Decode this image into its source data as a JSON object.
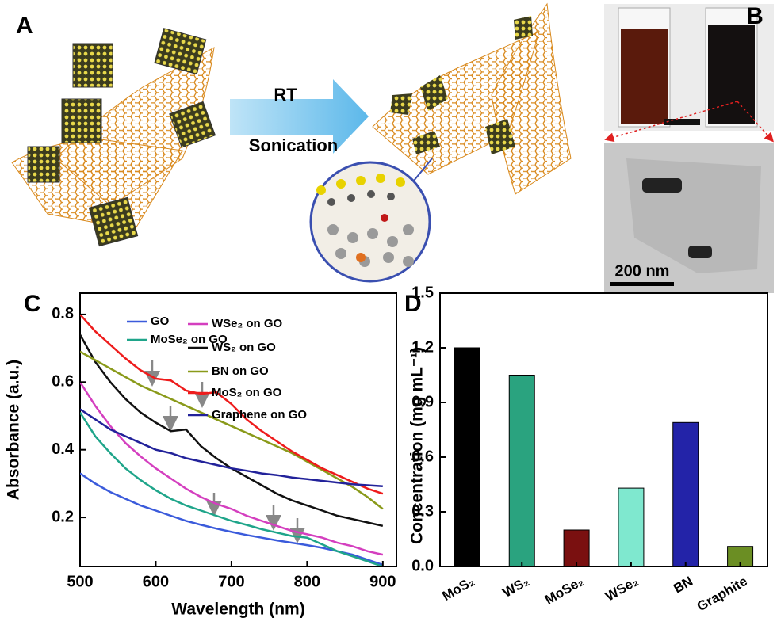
{
  "panels": {
    "a": {
      "label": "A",
      "arrow_top": "RT",
      "arrow_bottom": "Sonication"
    },
    "b": {
      "label": "B",
      "scale_bar": "200 nm"
    }
  },
  "chart_data": [
    {
      "type": "line",
      "panel_label": "C",
      "x_label": "Wavelength (nm)",
      "y_label": "Absorbance (a.u.)",
      "x": [
        500,
        520,
        540,
        560,
        580,
        600,
        620,
        640,
        660,
        680,
        700,
        720,
        740,
        760,
        780,
        800,
        820,
        840,
        860,
        880,
        900
      ],
      "xlim": [
        500,
        918
      ],
      "xticks": [
        500,
        600,
        700,
        800,
        900
      ],
      "ylim": [
        0.055,
        0.863
      ],
      "yticks": [
        0.2,
        0.4,
        0.6,
        0.8
      ],
      "series": [
        {
          "name": "GO",
          "color": "#3b5bdb",
          "values": [
            0.33,
            0.3,
            0.275,
            0.255,
            0.235,
            0.22,
            0.205,
            0.19,
            0.178,
            0.167,
            0.157,
            0.148,
            0.14,
            0.132,
            0.125,
            0.118,
            0.11,
            0.1,
            0.09,
            0.075,
            0.06
          ]
        },
        {
          "name": "MoSe₂ on GO",
          "color": "#1fa58a",
          "values": [
            0.51,
            0.44,
            0.39,
            0.345,
            0.31,
            0.28,
            0.255,
            0.235,
            0.22,
            0.205,
            0.19,
            0.178,
            0.165,
            0.155,
            0.145,
            0.14,
            0.12,
            0.1,
            0.085,
            0.07,
            0.055
          ]
        },
        {
          "name": "WSe₂ on GO",
          "color": "#d43fbf",
          "values": [
            0.6,
            0.53,
            0.47,
            0.42,
            0.38,
            0.345,
            0.315,
            0.285,
            0.26,
            0.24,
            0.225,
            0.205,
            0.19,
            0.175,
            0.16,
            0.15,
            0.14,
            0.125,
            0.115,
            0.1,
            0.09
          ]
        },
        {
          "name": "WS₂ on GO",
          "color": "#111111",
          "values": [
            0.74,
            0.66,
            0.6,
            0.55,
            0.51,
            0.48,
            0.455,
            0.46,
            0.41,
            0.375,
            0.345,
            0.32,
            0.295,
            0.27,
            0.25,
            0.235,
            0.22,
            0.205,
            0.195,
            0.185,
            0.175
          ]
        },
        {
          "name": "BN on GO",
          "color": "#8a9a1a",
          "values": [
            0.69,
            0.665,
            0.64,
            0.615,
            0.59,
            0.57,
            0.55,
            0.53,
            0.51,
            0.49,
            0.47,
            0.45,
            0.43,
            0.41,
            0.39,
            0.365,
            0.34,
            0.315,
            0.29,
            0.26,
            0.225
          ]
        },
        {
          "name": "MoS₂ on GO",
          "color": "#ee1c1c",
          "values": [
            0.8,
            0.75,
            0.71,
            0.67,
            0.635,
            0.61,
            0.605,
            0.575,
            0.565,
            0.57,
            0.535,
            0.49,
            0.455,
            0.425,
            0.395,
            0.37,
            0.345,
            0.325,
            0.305,
            0.285,
            0.27
          ]
        },
        {
          "name": "Graphene on GO",
          "color": "#22229a",
          "values": [
            0.52,
            0.49,
            0.46,
            0.44,
            0.42,
            0.4,
            0.39,
            0.375,
            0.365,
            0.355,
            0.345,
            0.338,
            0.33,
            0.325,
            0.318,
            0.313,
            0.308,
            0.303,
            0.298,
            0.295,
            0.292
          ]
        }
      ]
    },
    {
      "type": "bar",
      "panel_label": "D",
      "y_label": "Concentration (mg mL⁻¹)",
      "categories": [
        "MoS₂",
        "WS₂",
        "MoSe₂",
        "WSe₂",
        "BN",
        "Graphite"
      ],
      "values": [
        1.2,
        1.05,
        0.2,
        0.43,
        0.79,
        0.11
      ],
      "colors": [
        "#000000",
        "#2aa37f",
        "#7a1010",
        "#7fe8cf",
        "#2323a8",
        "#6b8e23"
      ],
      "ylim": [
        0,
        1.5
      ],
      "yticks": [
        {
          "value": 0,
          "label": "0.0"
        },
        0.3,
        0.6,
        0.9,
        1.2,
        1.5
      ]
    }
  ]
}
